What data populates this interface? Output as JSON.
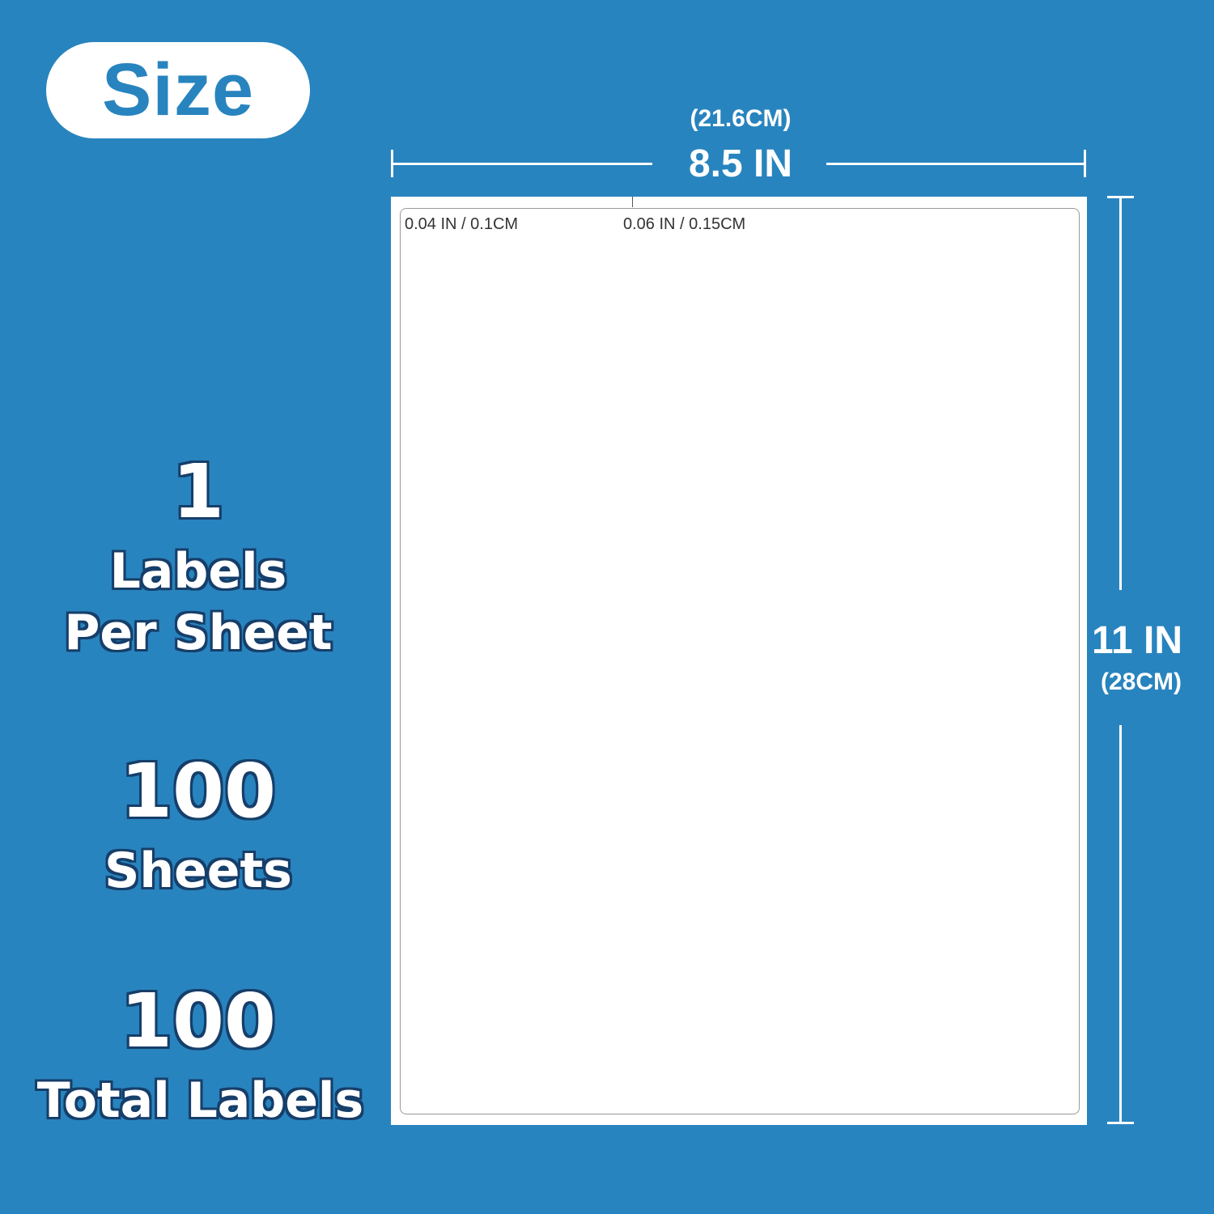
{
  "badge": {
    "label": "Size"
  },
  "stats": [
    {
      "value": "1",
      "label_lines": [
        "Labels",
        "Per Sheet"
      ]
    },
    {
      "value": "100",
      "label_lines": [
        "Sheets"
      ]
    },
    {
      "value": "100",
      "label_lines": [
        "Total Labels"
      ]
    }
  ],
  "width_dim": {
    "metric": "(21.6CM)",
    "imperial": "8.5 IN"
  },
  "height_dim": {
    "imperial": "11 IN",
    "metric": "(28CM)"
  },
  "margins": {
    "side": "0.04 IN / 0.1CM",
    "top": "0.06 IN / 0.15CM"
  },
  "colors": {
    "background": "#2884be",
    "sheet": "#ffffff",
    "outline": "#163e6a"
  }
}
